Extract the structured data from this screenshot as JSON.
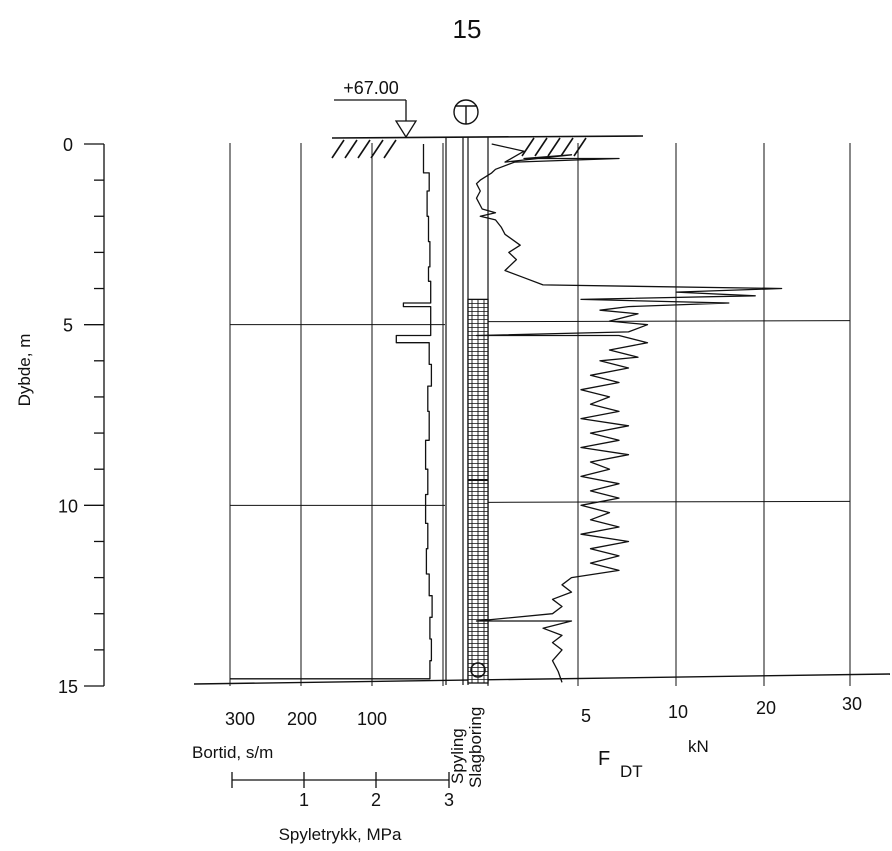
{
  "page_number": "15",
  "chart_data": {
    "type": "line",
    "title": "",
    "ground_level_label": "+67.00",
    "symbol_glyph": "T",
    "depth_axis": {
      "label": "Dybde, m",
      "ticks": [
        "0",
        "5",
        "10",
        "15"
      ],
      "range": [
        0,
        15
      ]
    },
    "bortid_axis": {
      "label": "Bortid, s/m",
      "ticks": [
        "300",
        "200",
        "100"
      ],
      "range": [
        300,
        0
      ]
    },
    "spyletrykk_axis": {
      "label": "Spyletrykk, MPa",
      "ticks": [
        "1",
        "2",
        "3"
      ],
      "range": [
        0,
        3
      ]
    },
    "force_axis": {
      "label_main": "F",
      "label_sub": "DT",
      "unit": "kN",
      "ticks": [
        "5",
        "10",
        "20",
        "30"
      ],
      "range": [
        0,
        30
      ]
    },
    "column_labels": [
      "Spyling",
      "Slagboring"
    ],
    "series": [
      {
        "name": "",
        "axis": "bortid",
        "points": [
          [
            30,
            0
          ],
          [
            30,
            0.8
          ],
          [
            22,
            0.8
          ],
          [
            22,
            1.3
          ],
          [
            25,
            1.3
          ],
          [
            25,
            2.0
          ],
          [
            23,
            2.0
          ],
          [
            23,
            2.7
          ],
          [
            21,
            2.7
          ],
          [
            21,
            3.4
          ],
          [
            23,
            3.4
          ],
          [
            23,
            3.8
          ],
          [
            20,
            3.8
          ],
          [
            20,
            4.4
          ],
          [
            58,
            4.4
          ],
          [
            58,
            4.5
          ],
          [
            20,
            4.5
          ],
          [
            20,
            5.3
          ],
          [
            68,
            5.3
          ],
          [
            68,
            5.5
          ],
          [
            22,
            5.5
          ],
          [
            22,
            6.1
          ],
          [
            19,
            6.1
          ],
          [
            19,
            6.7
          ],
          [
            24,
            6.7
          ],
          [
            24,
            7.4
          ],
          [
            22,
            7.4
          ],
          [
            22,
            8.2
          ],
          [
            27,
            8.2
          ],
          [
            27,
            9.0
          ],
          [
            24,
            9.0
          ],
          [
            24,
            9.7
          ],
          [
            27,
            9.7
          ],
          [
            27,
            10.5
          ],
          [
            24,
            10.5
          ],
          [
            24,
            11.2
          ],
          [
            26,
            11.2
          ],
          [
            26,
            11.9
          ],
          [
            22,
            11.9
          ],
          [
            22,
            12.5
          ],
          [
            18,
            12.5
          ],
          [
            18,
            13.1
          ],
          [
            21,
            13.1
          ],
          [
            21,
            13.7
          ],
          [
            19,
            13.7
          ],
          [
            19,
            14.3
          ],
          [
            21,
            14.3
          ],
          [
            21,
            14.8
          ],
          [
            300,
            14.8
          ]
        ]
      },
      {
        "name": "",
        "axis": "force",
        "points": [
          [
            0.3,
            0
          ],
          [
            2.0,
            0.2
          ],
          [
            1.0,
            0.5
          ],
          [
            4.5,
            0.3
          ],
          [
            2.0,
            0.4
          ],
          [
            7.0,
            0.4
          ],
          [
            1.5,
            0.5
          ],
          [
            0.5,
            0.7
          ],
          [
            0.3,
            0.8
          ],
          [
            -0.3,
            1.0
          ],
          [
            -0.5,
            1.1
          ],
          [
            -0.3,
            1.3
          ],
          [
            -0.5,
            1.5
          ],
          [
            -0.2,
            1.8
          ],
          [
            0.5,
            1.9
          ],
          [
            -0.3,
            2.0
          ],
          [
            0.5,
            2.1
          ],
          [
            0.8,
            2.3
          ],
          [
            1.0,
            2.5
          ],
          [
            1.8,
            2.8
          ],
          [
            1.2,
            3.0
          ],
          [
            1.6,
            3.2
          ],
          [
            1.0,
            3.5
          ],
          [
            2.0,
            3.7
          ],
          [
            3.0,
            3.9
          ],
          [
            22.0,
            4.0
          ],
          [
            10.0,
            4.1
          ],
          [
            19.0,
            4.2
          ],
          [
            5.0,
            4.3
          ],
          [
            16.0,
            4.4
          ],
          [
            7.5,
            4.5
          ],
          [
            6.0,
            4.6
          ],
          [
            8.0,
            4.7
          ],
          [
            6.5,
            4.9
          ],
          [
            8.5,
            5.0
          ],
          [
            7.5,
            5.2
          ],
          [
            -0.5,
            5.3
          ],
          [
            7.0,
            5.3
          ],
          [
            8.5,
            5.5
          ],
          [
            6.5,
            5.7
          ],
          [
            8.0,
            5.9
          ],
          [
            6.0,
            6.0
          ],
          [
            7.5,
            6.2
          ],
          [
            5.5,
            6.4
          ],
          [
            7.0,
            6.6
          ],
          [
            5.0,
            6.8
          ],
          [
            6.5,
            7.0
          ],
          [
            5.5,
            7.2
          ],
          [
            7.0,
            7.4
          ],
          [
            5.0,
            7.6
          ],
          [
            7.5,
            7.8
          ],
          [
            5.5,
            8.0
          ],
          [
            7.0,
            8.2
          ],
          [
            5.0,
            8.4
          ],
          [
            7.5,
            8.6
          ],
          [
            5.5,
            8.8
          ],
          [
            6.5,
            9.0
          ],
          [
            5.0,
            9.2
          ],
          [
            7.0,
            9.4
          ],
          [
            5.5,
            9.6
          ],
          [
            7.0,
            9.8
          ],
          [
            5.0,
            10.0
          ],
          [
            6.5,
            10.2
          ],
          [
            5.5,
            10.4
          ],
          [
            7.0,
            10.6
          ],
          [
            5.0,
            10.8
          ],
          [
            7.5,
            11.0
          ],
          [
            5.5,
            11.2
          ],
          [
            7.0,
            11.4
          ],
          [
            5.5,
            11.6
          ],
          [
            7.0,
            11.8
          ],
          [
            4.5,
            12.0
          ],
          [
            4.0,
            12.2
          ],
          [
            4.5,
            12.4
          ],
          [
            3.5,
            12.6
          ],
          [
            4.0,
            12.8
          ],
          [
            3.5,
            13.0
          ],
          [
            -0.5,
            13.2
          ],
          [
            4.5,
            13.2
          ],
          [
            3.0,
            13.4
          ],
          [
            4.0,
            13.6
          ],
          [
            3.5,
            13.8
          ],
          [
            4.0,
            14.0
          ],
          [
            3.5,
            14.3
          ],
          [
            3.8,
            14.6
          ],
          [
            4.0,
            14.9
          ]
        ]
      }
    ]
  }
}
